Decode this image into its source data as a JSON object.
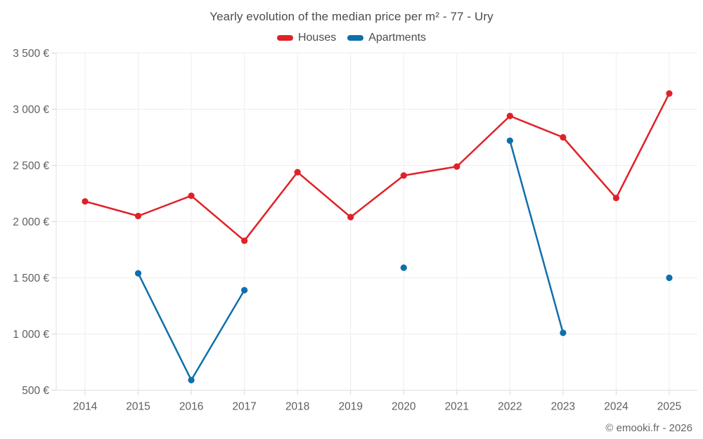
{
  "title": "Yearly evolution of the median price per m² - 77 - Ury",
  "watermark": "© emooki.fr - 2026",
  "colors": {
    "houses": "#e02127",
    "apartments": "#0f6fad",
    "grid": "#ededed",
    "axis_border": "#e0e0e0",
    "tick": "#d6d6d6",
    "axis_text": "#5f5f5f",
    "title_text": "#4c4c4c",
    "background": "#ffffff"
  },
  "chart_data": {
    "type": "line",
    "title": "Yearly evolution of the median price per m² - 77 - Ury",
    "categories": [
      "2014",
      "2015",
      "2016",
      "2017",
      "2018",
      "2019",
      "2020",
      "2021",
      "2022",
      "2023",
      "2024",
      "2025"
    ],
    "series": [
      {
        "name": "Houses",
        "color": "#e02127",
        "values": [
          2180,
          2050,
          2230,
          1830,
          2440,
          2040,
          2410,
          2490,
          2940,
          2750,
          2210,
          3140
        ]
      },
      {
        "name": "Apartments",
        "color": "#0f6fad",
        "values": [
          null,
          1540,
          590,
          1390,
          null,
          null,
          1590,
          null,
          2720,
          1010,
          null,
          1500
        ]
      }
    ],
    "xlabel": "",
    "ylabel": "",
    "ylim": [
      500,
      3500
    ],
    "yticks": [
      {
        "value": 500,
        "label": "500 €"
      },
      {
        "value": 1000,
        "label": "1 000 €"
      },
      {
        "value": 1500,
        "label": "1 500 €"
      },
      {
        "value": 2000,
        "label": "2 000 €"
      },
      {
        "value": 2500,
        "label": "2 500 €"
      },
      {
        "value": 3000,
        "label": "3 000 €"
      },
      {
        "value": 3500,
        "label": "3 500 €"
      }
    ],
    "grid": true,
    "legend_position": "top",
    "value_suffix": " €"
  }
}
